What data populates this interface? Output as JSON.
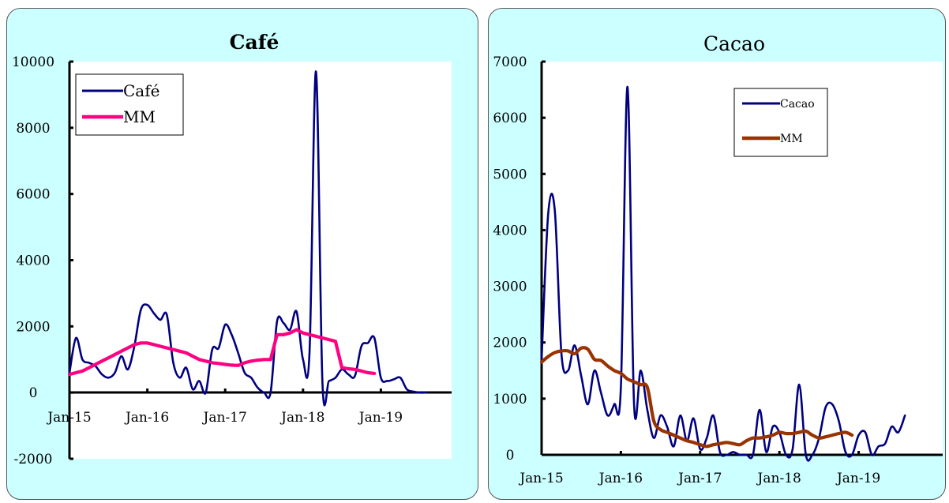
{
  "chart_data": [
    {
      "type": "line",
      "title": "Café",
      "x_tick_labels": [
        "Jan-15",
        "Jan-16",
        "Jan-17",
        "Jan-18",
        "Jan-19"
      ],
      "ylim": [
        -2000,
        10000
      ],
      "y_ticks": [
        -2000,
        0,
        2000,
        4000,
        6000,
        8000,
        10000
      ],
      "grid": false,
      "legend_position": "top-left",
      "series": [
        {
          "name": "Café",
          "color": "#000080",
          "smooth": true,
          "values": [
            600,
            1650,
            1000,
            900,
            800,
            550,
            450,
            600,
            1100,
            700,
            1400,
            2500,
            2650,
            2400,
            2200,
            2350,
            900,
            450,
            750,
            100,
            350,
            0,
            1300,
            1350,
            2050,
            1750,
            1200,
            600,
            450,
            150,
            0,
            0,
            2150,
            2100,
            1900,
            2450,
            1000,
            1200,
            9700,
            300,
            350,
            450,
            700,
            550,
            500,
            1400,
            1500,
            1650,
            450,
            350,
            400,
            450,
            100,
            30,
            0,
            0
          ]
        },
        {
          "name": "MM",
          "color": "#ff0080",
          "smooth": false,
          "values": [
            550,
            600,
            650,
            750,
            850,
            950,
            1050,
            1150,
            1250,
            1350,
            1450,
            1500,
            1500,
            1450,
            1400,
            1350,
            1300,
            1250,
            1200,
            1100,
            1000,
            950,
            900,
            880,
            850,
            830,
            820,
            900,
            950,
            980,
            1000,
            1000,
            1750,
            1750,
            1800,
            1900,
            1800,
            1750,
            1700,
            1650,
            1600,
            1550,
            750,
            720,
            700,
            650,
            600,
            580
          ]
        }
      ]
    },
    {
      "type": "line",
      "title": "Cacao",
      "x_tick_labels": [
        "Jan-15",
        "Jan-16",
        "Jan-17",
        "Jan-18",
        "Jan-19"
      ],
      "ylim": [
        0,
        7000
      ],
      "y_ticks": [
        0,
        1000,
        2000,
        3000,
        4000,
        5000,
        6000,
        7000
      ],
      "grid": false,
      "legend_position": "top-right",
      "series": [
        {
          "name": "Cacao",
          "color": "#000080",
          "smooth": true,
          "values": [
            1700,
            4300,
            4350,
            1800,
            1500,
            1950,
            1400,
            900,
            1500,
            1100,
            700,
            900,
            1200,
            6550,
            900,
            1500,
            800,
            300,
            700,
            500,
            150,
            700,
            250,
            650,
            100,
            300,
            700,
            50,
            0,
            50,
            0,
            0,
            0,
            800,
            50,
            500,
            400,
            0,
            100,
            1250,
            0,
            0,
            300,
            850,
            900,
            600,
            50,
            0,
            350,
            400,
            0,
            150,
            200,
            500,
            400,
            700
          ]
        },
        {
          "name": "MM",
          "color": "#993300",
          "smooth": true,
          "values": [
            1650,
            1750,
            1820,
            1850,
            1850,
            1800,
            1900,
            1880,
            1700,
            1680,
            1580,
            1500,
            1450,
            1350,
            1300,
            1250,
            1200,
            600,
            450,
            400,
            350,
            300,
            250,
            220,
            180,
            150,
            180,
            200,
            220,
            200,
            180,
            250,
            300,
            300,
            320,
            350,
            400,
            380,
            380,
            400,
            420,
            350,
            300,
            320,
            350,
            380,
            400,
            350
          ]
        }
      ]
    }
  ]
}
